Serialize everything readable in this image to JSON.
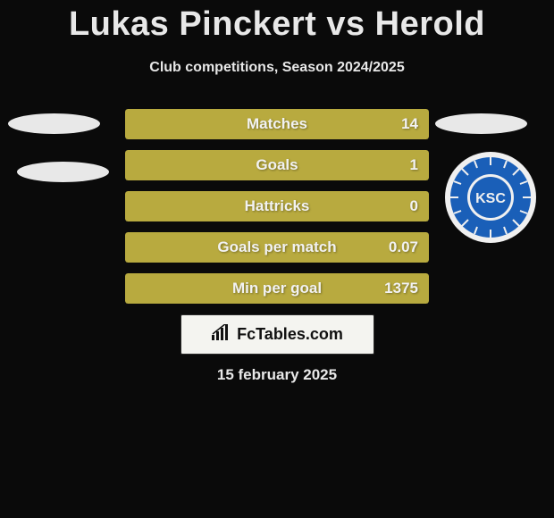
{
  "title": "Lukas Pinckert vs Herold",
  "subtitle": "Club competitions, Season 2024/2025",
  "date": "15 february 2025",
  "logo_text": "FcTables.com",
  "colors": {
    "background": "#0a0a0a",
    "bar_fill": "#b8aa3f",
    "bar_text": "#f2f2f2",
    "logo_bg": "#f4f4f0",
    "ksc_blue": "#1a5fb8",
    "ksc_white": "#f0f0f0"
  },
  "badge_text": "KSC",
  "stats": [
    {
      "label": "Matches",
      "value": "14",
      "leftPct": 0,
      "fillPct": 100
    },
    {
      "label": "Goals",
      "value": "1",
      "leftPct": 0,
      "fillPct": 100
    },
    {
      "label": "Hattricks",
      "value": "0",
      "leftPct": 0,
      "fillPct": 100
    },
    {
      "label": "Goals per match",
      "value": "0.07",
      "leftPct": 0,
      "fillPct": 100
    },
    {
      "label": "Min per goal",
      "value": "1375",
      "leftPct": 0,
      "fillPct": 100
    }
  ]
}
